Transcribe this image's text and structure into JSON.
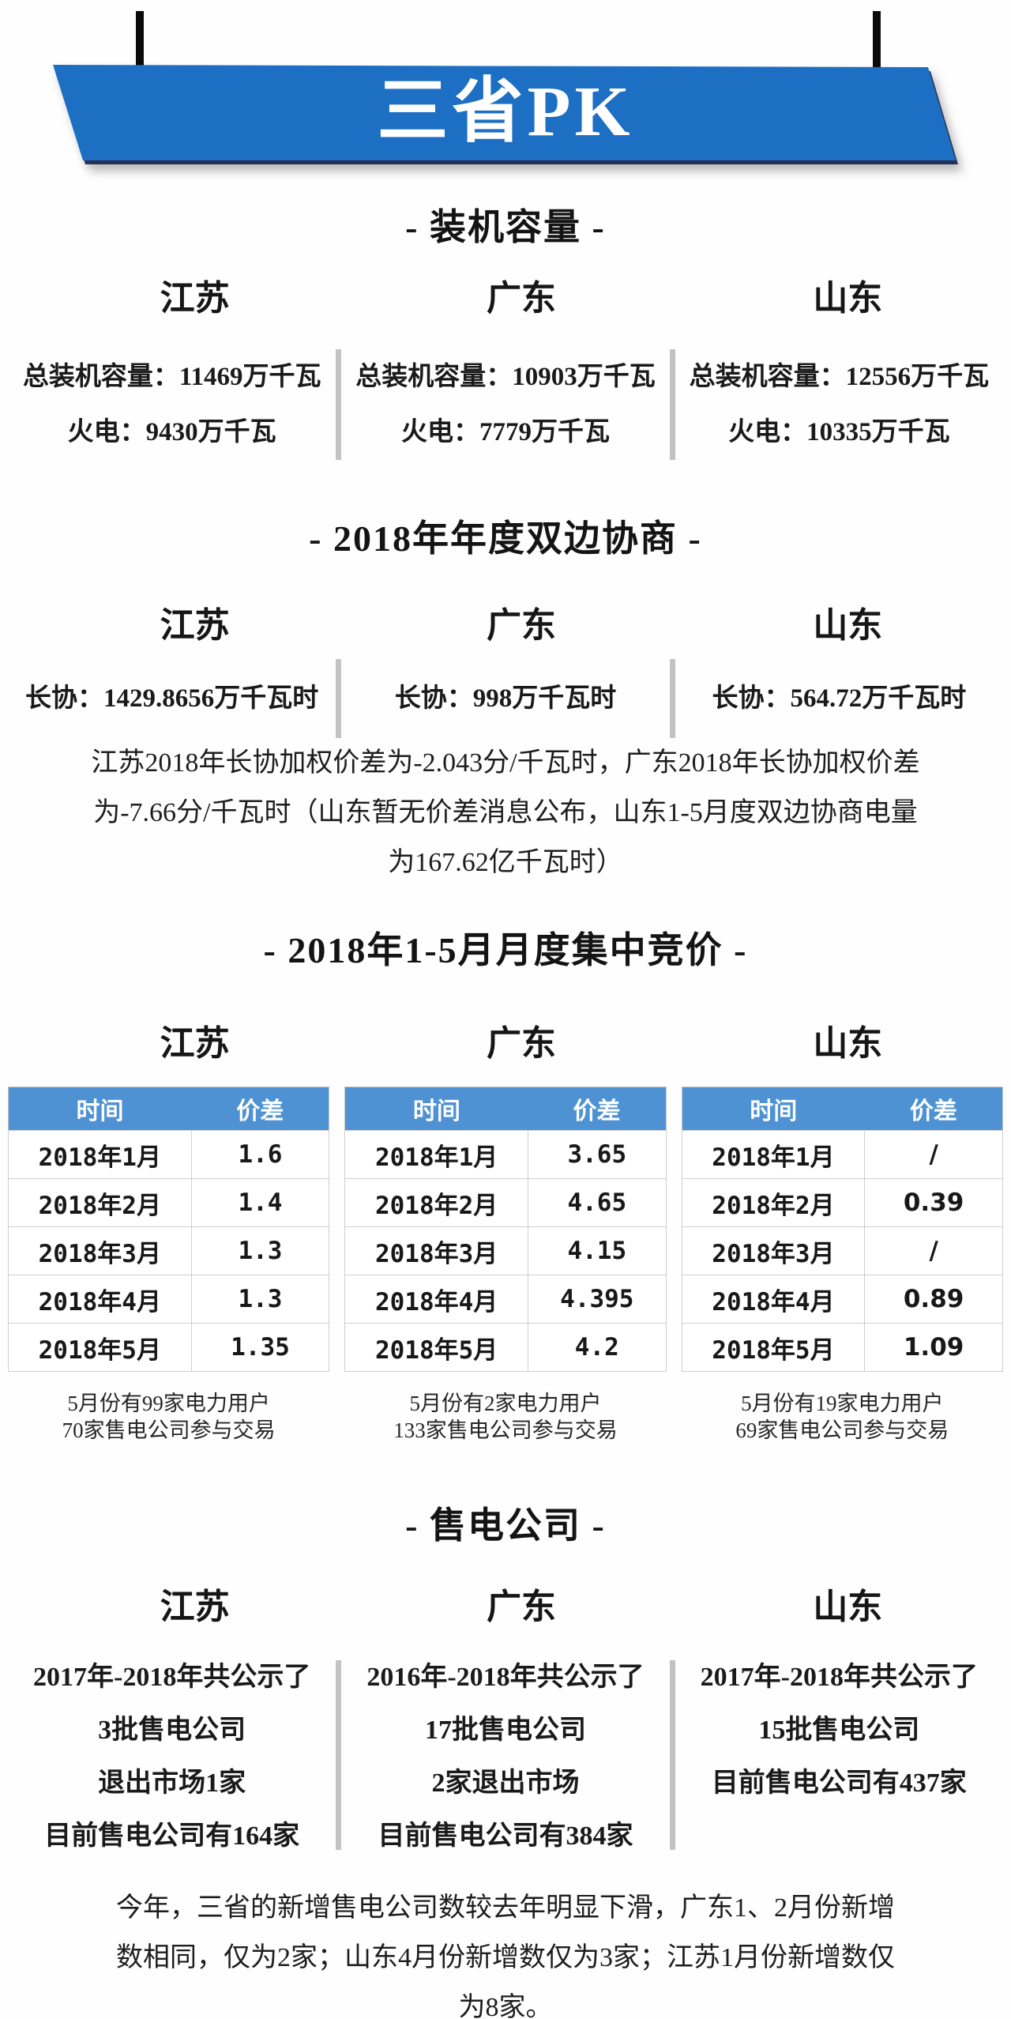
{
  "banner": {
    "title": "三省PK"
  },
  "section_capacity": {
    "heading": "- 装机容量 -",
    "columns": [
      {
        "province": "江苏",
        "lines": [
          "总装机容量：11469万千瓦",
          "火电：9430万千瓦"
        ]
      },
      {
        "province": "广东",
        "lines": [
          "总装机容量：10903万千瓦",
          "火电：7779万千瓦"
        ]
      },
      {
        "province": "山东",
        "lines": [
          "总装机容量：12556万千瓦",
          "火电：10335万千瓦"
        ]
      }
    ]
  },
  "section_bilateral": {
    "heading": "- 2018年年度双边协商 -",
    "columns": [
      {
        "province": "江苏",
        "line": "长协：1429.8656万千瓦时"
      },
      {
        "province": "广东",
        "line": "长协：998万千瓦时"
      },
      {
        "province": "山东",
        "line": "长协：564.72万千瓦时"
      }
    ],
    "note": "江苏2018年长协加权价差为-2.043分/千瓦时，广东2018年长协加权价差为-7.66分/千瓦时（山东暂无价差消息公布，山东1-5月度双边协商电量为167.62亿千瓦时）"
  },
  "section_bidding": {
    "heading": "- 2018年1-5月月度集中竞价 -",
    "columns": [
      {
        "province": "江苏",
        "table": {
          "headers": [
            "时间",
            "价差"
          ],
          "rows": [
            [
              "2018年1月",
              "1.6"
            ],
            [
              "2018年2月",
              "1.4"
            ],
            [
              "2018年3月",
              "1.3"
            ],
            [
              "2018年4月",
              "1.3"
            ],
            [
              "2018年5月",
              "1.35"
            ]
          ]
        },
        "note": [
          "5月份有99家电力用户",
          "70家售电公司参与交易"
        ]
      },
      {
        "province": "广东",
        "table": {
          "headers": [
            "时间",
            "价差"
          ],
          "rows": [
            [
              "2018年1月",
              "3.65"
            ],
            [
              "2018年2月",
              "4.65"
            ],
            [
              "2018年3月",
              "4.15"
            ],
            [
              "2018年4月",
              "4.395"
            ],
            [
              "2018年5月",
              "4.2"
            ]
          ]
        },
        "note": [
          "5月份有2家电力用户",
          "133家售电公司参与交易"
        ]
      },
      {
        "province": "山东",
        "table": {
          "headers": [
            "时间",
            "价差"
          ],
          "rows": [
            [
              "2018年1月",
              "/"
            ],
            [
              "2018年2月",
              "0.39"
            ],
            [
              "2018年3月",
              "/"
            ],
            [
              "2018年4月",
              "0.89"
            ],
            [
              "2018年5月",
              "1.09"
            ]
          ]
        },
        "note": [
          "5月份有19家电力用户",
          "69家售电公司参与交易"
        ]
      }
    ]
  },
  "section_retail": {
    "heading": "- 售电公司 -",
    "columns": [
      {
        "province": "江苏",
        "lines": [
          "2017年-2018年共公示了",
          "3批售电公司",
          "退出市场1家",
          "目前售电公司有164家"
        ]
      },
      {
        "province": "广东",
        "lines": [
          "2016年-2018年共公示了",
          "17批售电公司",
          "2家退出市场",
          "目前售电公司有384家"
        ]
      },
      {
        "province": "山东",
        "lines": [
          "2017年-2018年共公示了",
          "15批售电公司",
          "目前售电公司有437家"
        ]
      }
    ]
  },
  "footer_note": "今年，三省的新增售电公司数较去年明显下滑，广东1、2月份新增数相同，仅为2家；山东4月份新增数仅为3家；江苏1月份新增数仅为8家。",
  "colors": {
    "banner_blue": "#1c6fc2",
    "banner_shadow_navy": "#0c1640",
    "table_header_blue": "#4e92d4",
    "divider_gray": "#c3c3c3",
    "table_border_gray": "#cfcfcf",
    "hanger_black": "#0a0a0a"
  },
  "chart_data": [
    {
      "type": "table",
      "title": "江苏 2018年1-5月月度集中竞价",
      "columns": [
        "时间",
        "价差"
      ],
      "rows": [
        [
          "2018年1月",
          1.6
        ],
        [
          "2018年2月",
          1.4
        ],
        [
          "2018年3月",
          1.3
        ],
        [
          "2018年4月",
          1.3
        ],
        [
          "2018年5月",
          1.35
        ]
      ]
    },
    {
      "type": "table",
      "title": "广东 2018年1-5月月度集中竞价",
      "columns": [
        "时间",
        "价差"
      ],
      "rows": [
        [
          "2018年1月",
          3.65
        ],
        [
          "2018年2月",
          4.65
        ],
        [
          "2018年3月",
          4.15
        ],
        [
          "2018年4月",
          4.395
        ],
        [
          "2018年5月",
          4.2
        ]
      ]
    },
    {
      "type": "table",
      "title": "山东 2018年1-5月月度集中竞价",
      "columns": [
        "时间",
        "价差"
      ],
      "rows": [
        [
          "2018年1月",
          "/"
        ],
        [
          "2018年2月",
          0.39
        ],
        [
          "2018年3月",
          "/"
        ],
        [
          "2018年4月",
          0.89
        ],
        [
          "2018年5月",
          1.09
        ]
      ]
    }
  ]
}
